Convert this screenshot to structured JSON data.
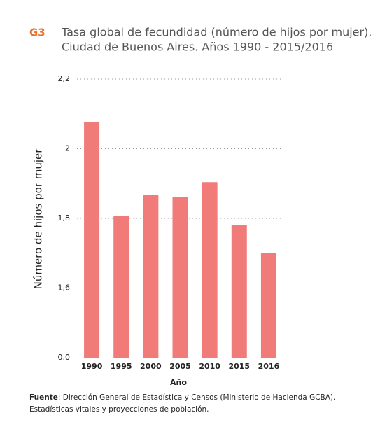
{
  "chart_data": {
    "type": "bar",
    "figure_label": "G3",
    "title": "Tasa global de fecundidad (número de hijos por mujer).",
    "subtitle": "Ciudad de Buenos Aires. Años 1990 - 2015/2016",
    "categories": [
      "1990",
      "1995",
      "2000",
      "2005",
      "2010",
      "2015",
      "2016"
    ],
    "values": [
      2.076,
      1.808,
      1.868,
      1.862,
      1.904,
      1.78,
      1.7
    ],
    "color": "#f07b78",
    "ylim": [
      0,
      2.2
    ],
    "yticks": [
      {
        "value": 0,
        "label": "0,0"
      },
      {
        "value": 1.6,
        "label": "1,6"
      },
      {
        "value": 1.8,
        "label": "1,8"
      },
      {
        "value": 2,
        "label": "2"
      },
      {
        "value": 2.2,
        "label": "2,2"
      }
    ],
    "ytick_spacing": "even",
    "grid": true,
    "xlabel": "Año",
    "ylabel": "Número de hijos por mujer",
    "source_label": "Fuente",
    "source_text": ": Dirección General de Estadística y Censos (Ministerio de Hacienda GCBA).",
    "source_text_2": "Estadísticas vitales y proyecciones de población."
  }
}
